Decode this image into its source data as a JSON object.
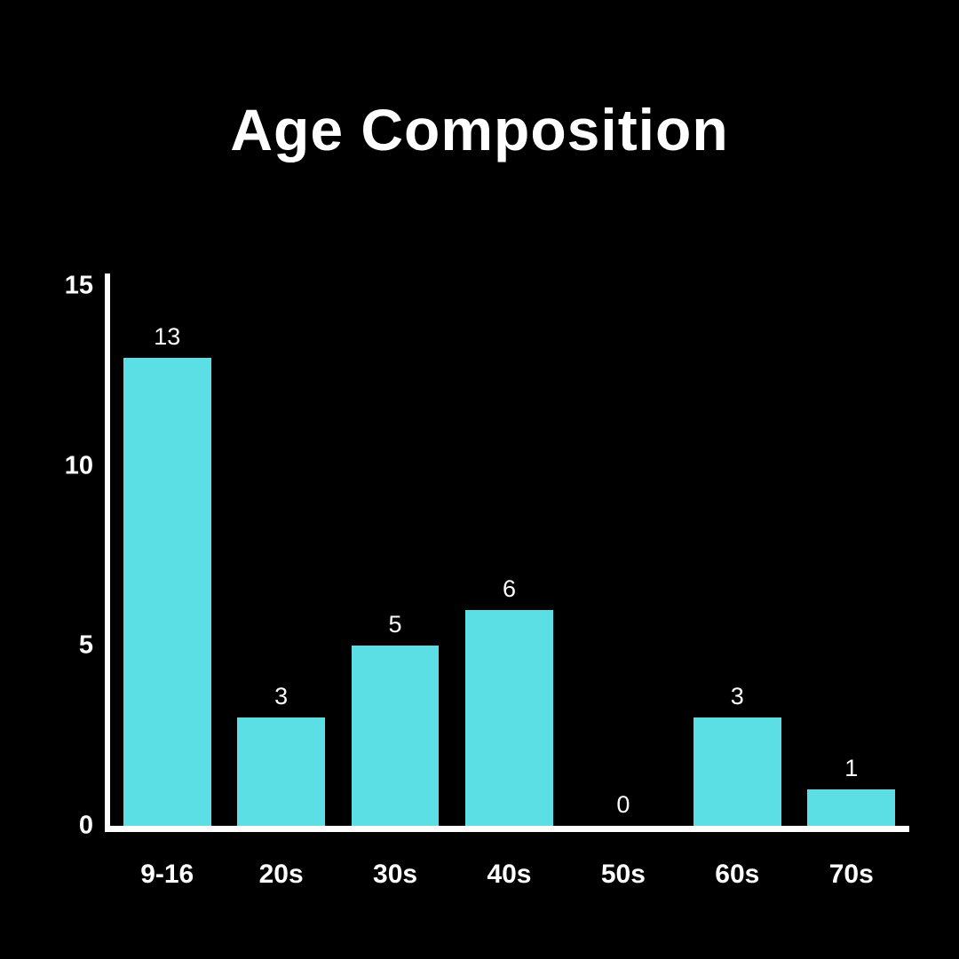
{
  "title": "Age Composition",
  "colors": {
    "background": "#000000",
    "bar": "#5BDFE4",
    "axis": "#FFFFFF",
    "text": "#FFFFFF"
  },
  "chart_data": {
    "type": "bar",
    "title": "Age Composition",
    "categories": [
      "9-16",
      "20s",
      "30s",
      "40s",
      "50s",
      "60s",
      "70s"
    ],
    "values": [
      13,
      3,
      5,
      6,
      0,
      3,
      1
    ],
    "xlabel": "",
    "ylabel": "",
    "ylim": [
      0,
      15
    ],
    "y_ticks": [
      0,
      5,
      10,
      15
    ],
    "grid": false,
    "legend_position": "none"
  }
}
